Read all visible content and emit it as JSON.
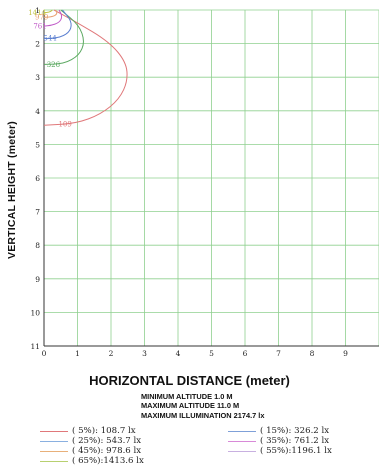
{
  "chart_data": {
    "type": "line",
    "title": "",
    "xlabel": "HORIZONTAL DISTANCE (meter)",
    "ylabel": "VERTICAL HEIGHT (meter)",
    "xlim": [
      0,
      10
    ],
    "ylim": [
      11,
      1
    ],
    "x_ticks": [
      "0",
      "1",
      "2",
      "3",
      "4",
      "5",
      "6",
      "7",
      "8",
      "9"
    ],
    "y_ticks": [
      "1",
      "2",
      "3",
      "4",
      "5",
      "6",
      "7",
      "8",
      "9",
      "10",
      "11"
    ],
    "grid": true,
    "summary": [
      "MINIMUM ALTITUDE 1.0 M",
      "MAXIMUM ALTITUDE 11.0 M",
      "MAXIMUM ILLUMINATION 2174.7 lx"
    ],
    "legend": [
      {
        "label": "(  5%): 108.7  lx",
        "color": "#e0787a"
      },
      {
        "label": "( 15%): 326.2  lx",
        "color": "#7fa0d8"
      },
      {
        "label": "( 25%): 543.7  lx",
        "color": "#8ab0e0"
      },
      {
        "label": "( 35%): 761.2  lx",
        "color": "#d88ad8"
      },
      {
        "label": "( 45%): 978.6  lx",
        "color": "#e8b07a"
      },
      {
        "label": "( 55%):1196.1  lx",
        "color": "#c8b0e0"
      },
      {
        "label": "( 65%):1413.6  lx",
        "color": "#b8d070"
      }
    ],
    "series": [
      {
        "value": 108.7,
        "label": "109",
        "color": "#e0787a",
        "points": [
          [
            0.3,
            1.0
          ],
          [
            0.95,
            1.35
          ],
          [
            1.95,
            1.95
          ],
          [
            2.45,
            2.55
          ],
          [
            2.5,
            3.1
          ],
          [
            2.25,
            3.65
          ],
          [
            1.7,
            4.1
          ],
          [
            0.95,
            4.38
          ],
          [
            0.0,
            4.43
          ]
        ]
      },
      {
        "value": 326.2,
        "label": "326",
        "color": "#5aa860",
        "points": [
          [
            0.5,
            1.0
          ],
          [
            1.05,
            1.45
          ],
          [
            1.22,
            1.95
          ],
          [
            1.05,
            2.35
          ],
          [
            0.6,
            2.6
          ],
          [
            0.0,
            2.62
          ]
        ]
      },
      {
        "value": 543.7,
        "label": "544",
        "color": "#5b7fd0",
        "points": [
          [
            0.55,
            1.0
          ],
          [
            0.82,
            1.32
          ],
          [
            0.8,
            1.62
          ],
          [
            0.5,
            1.82
          ],
          [
            0.0,
            1.85
          ]
        ]
      },
      {
        "value": 761.2,
        "label": "761",
        "color": "#c05ac8",
        "points": [
          [
            0.45,
            1.0
          ],
          [
            0.55,
            1.2
          ],
          [
            0.45,
            1.38
          ],
          [
            0.2,
            1.46
          ],
          [
            0.0,
            1.48
          ]
        ]
      },
      {
        "value": 978.6,
        "label": "979",
        "color": "#e8a070",
        "points": [
          [
            0.35,
            1.0
          ],
          [
            0.4,
            1.12
          ],
          [
            0.25,
            1.2
          ],
          [
            0.0,
            1.22
          ]
        ]
      },
      {
        "value": 1413.6,
        "label": "1414",
        "color": "#c0c040",
        "points": [
          [
            0.25,
            1.0
          ],
          [
            0.18,
            1.06
          ],
          [
            0.0,
            1.08
          ]
        ]
      }
    ]
  }
}
